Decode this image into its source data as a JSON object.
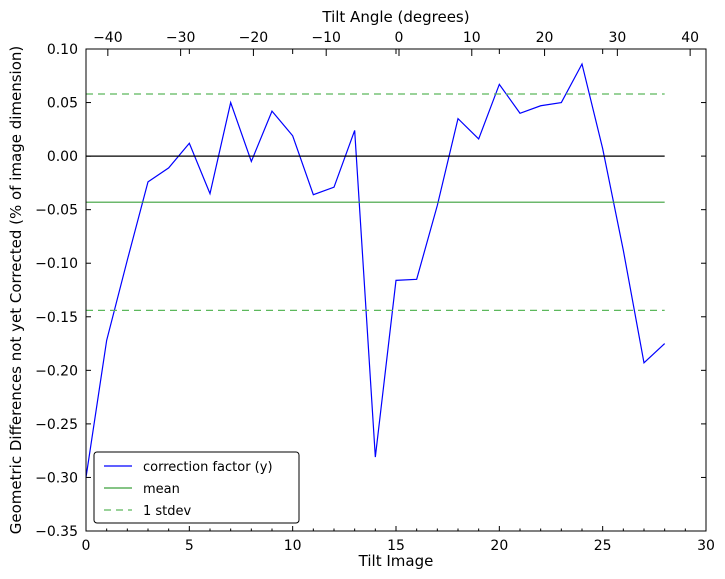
{
  "chart_data": {
    "type": "line",
    "title": "",
    "xlabel": "Tilt Image",
    "ylabel": "Geometric Differences not yet Corrected (% of image dimension)",
    "top_xlabel": "Tilt Angle (degrees)",
    "xlim": [
      0,
      30
    ],
    "ylim": [
      -0.35,
      0.1
    ],
    "x_ticks": [
      "0",
      "5",
      "10",
      "15",
      "20",
      "25",
      "30"
    ],
    "y_ticks": [
      "0.10",
      "0.05",
      "0.00",
      "−0.05",
      "−0.10",
      "−0.15",
      "−0.20",
      "−0.25",
      "−0.30",
      "−0.35"
    ],
    "top_ticks": [
      "−40",
      "−30",
      "−20",
      "−10",
      "0",
      "10",
      "20",
      "30",
      "40"
    ],
    "top_tick_values": [
      -40,
      -30,
      -20,
      -10,
      0,
      10,
      20,
      30,
      40
    ],
    "top_axis_map": {
      "x_at": [
        0,
        28
      ],
      "angle_at": [
        -43,
        36.5
      ]
    },
    "grid": false,
    "legend_position": "lower-left",
    "series": [
      {
        "name": "correction factor (y)",
        "color": "#0000ff",
        "style": "solid",
        "x": [
          0,
          1,
          2,
          3,
          4,
          5,
          6,
          7,
          8,
          9,
          10,
          11,
          12,
          13,
          14,
          15,
          16,
          17,
          18,
          19,
          20,
          21,
          22,
          23,
          24,
          25,
          26,
          27,
          28
        ],
        "y": [
          -0.3,
          -0.172,
          -0.097,
          -0.024,
          -0.011,
          0.012,
          -0.035,
          0.05,
          -0.005,
          0.042,
          0.019,
          -0.036,
          -0.029,
          0.024,
          -0.281,
          -0.116,
          -0.115,
          -0.046,
          0.035,
          0.016,
          0.067,
          0.04,
          0.047,
          0.05,
          0.086,
          0.007,
          -0.088,
          -0.193,
          -0.175
        ]
      },
      {
        "name": "mean",
        "color": "#3ca03c",
        "style": "solid",
        "x": [
          0,
          28
        ],
        "y": [
          -0.043,
          -0.043
        ]
      },
      {
        "name": "1 stdev",
        "color": "#5cb85c",
        "style": "dashed",
        "x": [
          0,
          28
        ],
        "y": [
          0.058,
          0.058
        ]
      },
      {
        "name": "",
        "color": "#5cb85c",
        "style": "dashed",
        "x": [
          0,
          28
        ],
        "y": [
          -0.144,
          -0.144
        ]
      },
      {
        "name": "",
        "color": "#000000",
        "style": "solid",
        "x": [
          0,
          28
        ],
        "y": [
          0.0,
          0.0
        ]
      }
    ],
    "legend": [
      {
        "label": "correction factor (y)",
        "color": "#0000ff",
        "style": "solid"
      },
      {
        "label": "mean",
        "color": "#3ca03c",
        "style": "solid"
      },
      {
        "label": "1 stdev",
        "color": "#5cb85c",
        "style": "dashed"
      }
    ]
  }
}
